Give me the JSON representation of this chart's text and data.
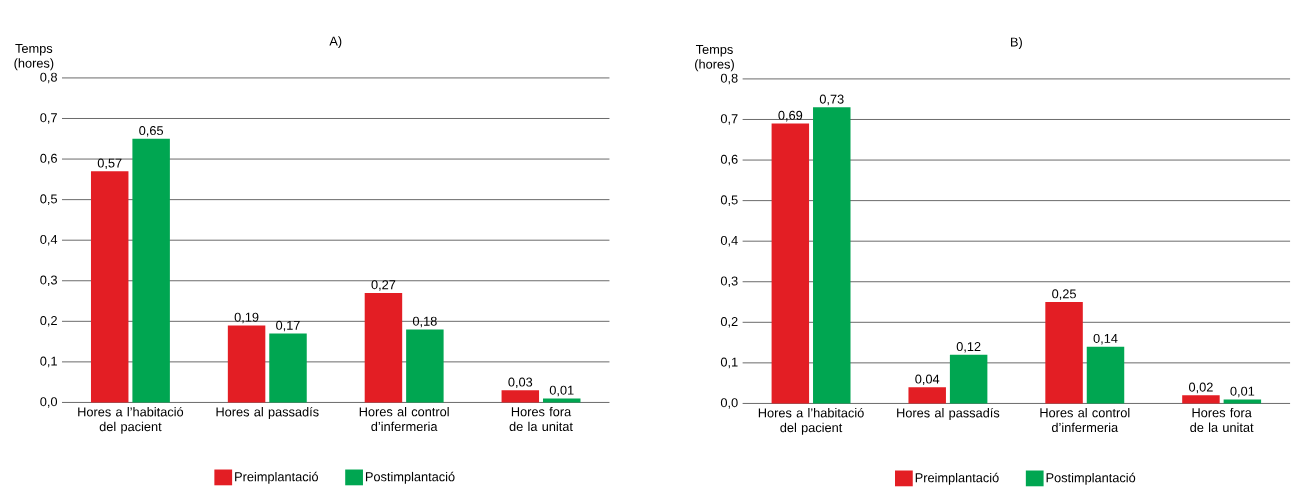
{
  "chart_data": [
    {
      "type": "bar",
      "title": "A)",
      "ylabel": "Temps (hores)",
      "categories": [
        "Hores a l’habitació del pacient",
        "Hores al passadís",
        "Hores al control d’infermeria",
        "Hores fora de la unitat"
      ],
      "series": [
        {
          "name": "Preimplantació",
          "color": "#e31e24",
          "values": [
            0.57,
            0.19,
            0.27,
            0.03
          ],
          "value_labels": [
            "0,57",
            "0,19",
            "0,27",
            "0,03"
          ]
        },
        {
          "name": "Postimplantació",
          "color": "#00a651",
          "values": [
            0.65,
            0.17,
            0.18,
            0.01
          ],
          "value_labels": [
            "0,65",
            "0,17",
            "0,18",
            "0,01"
          ]
        }
      ],
      "ylim": [
        0,
        0.8
      ],
      "yticks": [
        {
          "value": 0,
          "label": "0,0"
        },
        {
          "value": 0.1,
          "label": "0,1"
        },
        {
          "value": 0.2,
          "label": "0,2"
        },
        {
          "value": 0.3,
          "label": "0,3"
        },
        {
          "value": 0.4,
          "label": "0,4"
        },
        {
          "value": 0.5,
          "label": "0,5"
        },
        {
          "value": 0.6,
          "label": "0,6"
        },
        {
          "value": 0.7,
          "label": "0,7"
        },
        {
          "value": 0.8,
          "label": "0,8"
        }
      ],
      "grid": "y",
      "legend": "bottom"
    },
    {
      "type": "bar",
      "title": "B)",
      "ylabel": "Temps (hores)",
      "categories": [
        "Hores a l’habitació del pacient",
        "Hores al passadís",
        "Hores al control d’infermeria",
        "Hores fora de la unitat"
      ],
      "series": [
        {
          "name": "Preimplantació",
          "color": "#e31e24",
          "values": [
            0.69,
            0.04,
            0.25,
            0.02
          ],
          "value_labels": [
            "0,69",
            "0,04",
            "0,25",
            "0,02"
          ]
        },
        {
          "name": "Postimplantació",
          "color": "#00a651",
          "values": [
            0.73,
            0.12,
            0.14,
            0.01
          ],
          "value_labels": [
            "0,73",
            "0,12",
            "0,14",
            "0,01"
          ]
        }
      ],
      "ylim": [
        0,
        0.8
      ],
      "yticks": [
        {
          "value": 0,
          "label": "0,0"
        },
        {
          "value": 0.1,
          "label": "0,1"
        },
        {
          "value": 0.2,
          "label": "0,2"
        },
        {
          "value": 0.3,
          "label": "0,3"
        },
        {
          "value": 0.4,
          "label": "0,4"
        },
        {
          "value": 0.5,
          "label": "0,5"
        },
        {
          "value": 0.6,
          "label": "0,6"
        },
        {
          "value": 0.7,
          "label": "0,7"
        },
        {
          "value": 0.8,
          "label": "0,8"
        }
      ],
      "grid": "y",
      "legend": "bottom"
    }
  ]
}
